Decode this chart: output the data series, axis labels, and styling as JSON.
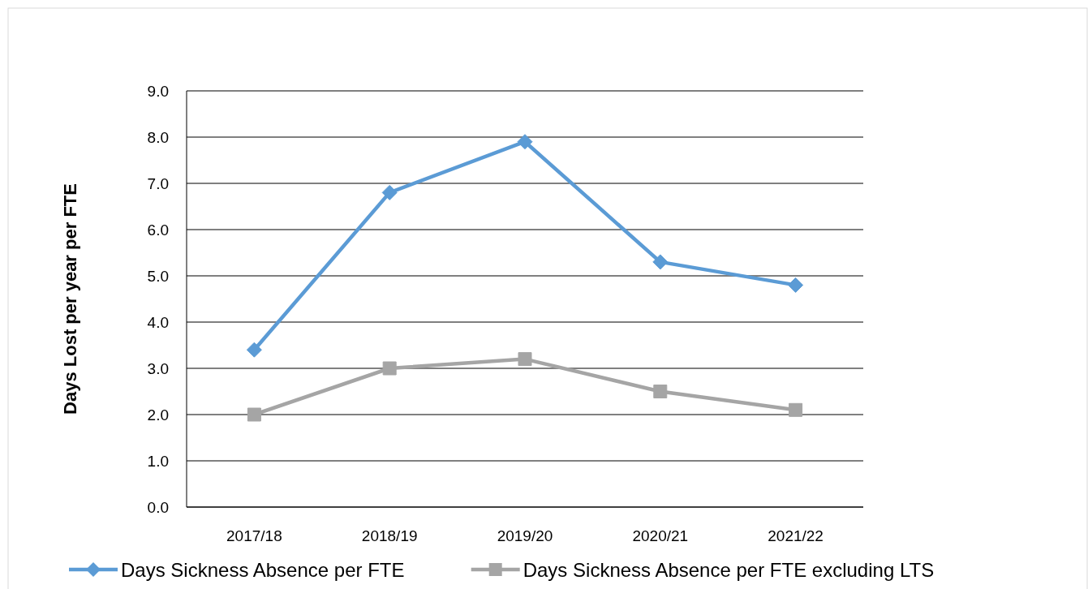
{
  "chart_data": {
    "type": "line",
    "ylabel": "Days Lost per year per FTE",
    "categories": [
      "2017/18",
      "2018/19",
      "2019/20",
      "2020/21",
      "2021/22"
    ],
    "series": [
      {
        "name": "Days Sickness Absence per FTE",
        "color": "#5b9bd5",
        "marker": "diamond",
        "values": [
          3.4,
          6.8,
          7.9,
          5.3,
          4.8
        ]
      },
      {
        "name": "Days Sickness Absence per FTE excluding LTS",
        "color": "#a5a5a5",
        "marker": "square",
        "values": [
          2.0,
          3.0,
          3.2,
          2.5,
          2.1
        ]
      }
    ],
    "ylim": [
      0,
      9
    ],
    "yticks": [
      {
        "value": 0,
        "label": "0.0"
      },
      {
        "value": 1,
        "label": "1.0"
      },
      {
        "value": 2,
        "label": "2.0"
      },
      {
        "value": 3,
        "label": "3.0"
      },
      {
        "value": 4,
        "label": "4.0"
      },
      {
        "value": 5,
        "label": "5.0"
      },
      {
        "value": 6,
        "label": "6.0"
      },
      {
        "value": 7,
        "label": "7.0"
      },
      {
        "value": 8,
        "label": "8.0"
      },
      {
        "value": 9,
        "label": "9.0"
      }
    ],
    "grid": "y",
    "legend": "bottom",
    "line_style": "solid"
  }
}
